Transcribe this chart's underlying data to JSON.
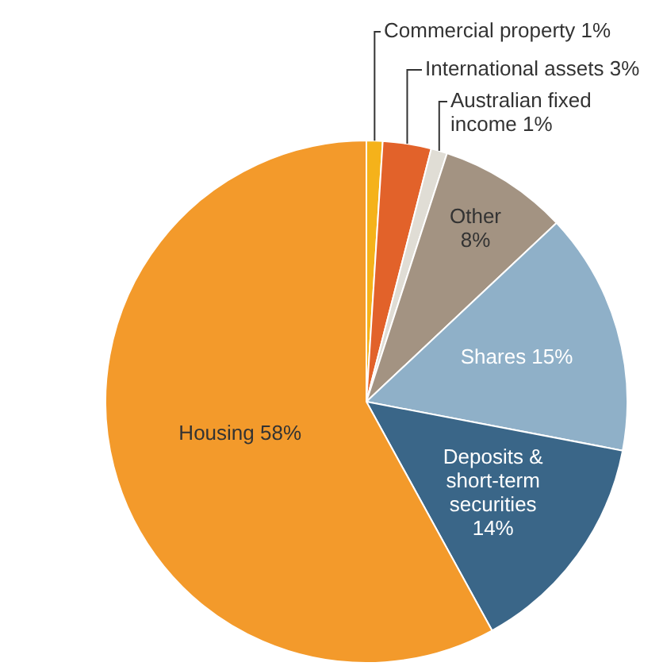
{
  "chart_data": {
    "type": "pie",
    "categories": [
      "Commercial property",
      "International assets",
      "Australian fixed income",
      "Other",
      "Shares",
      "Deposits & short-term securities",
      "Housing"
    ],
    "values": [
      1,
      3,
      1,
      8,
      15,
      14,
      58
    ],
    "value_labels": [
      "1%",
      "3%",
      "1%",
      "8%",
      "15%",
      "14%",
      "58%"
    ],
    "colors": [
      "#f5b21a",
      "#e2622a",
      "#e0ddd5",
      "#a39382",
      "#8fb0c8",
      "#3a6688",
      "#f39a2b"
    ]
  }
}
